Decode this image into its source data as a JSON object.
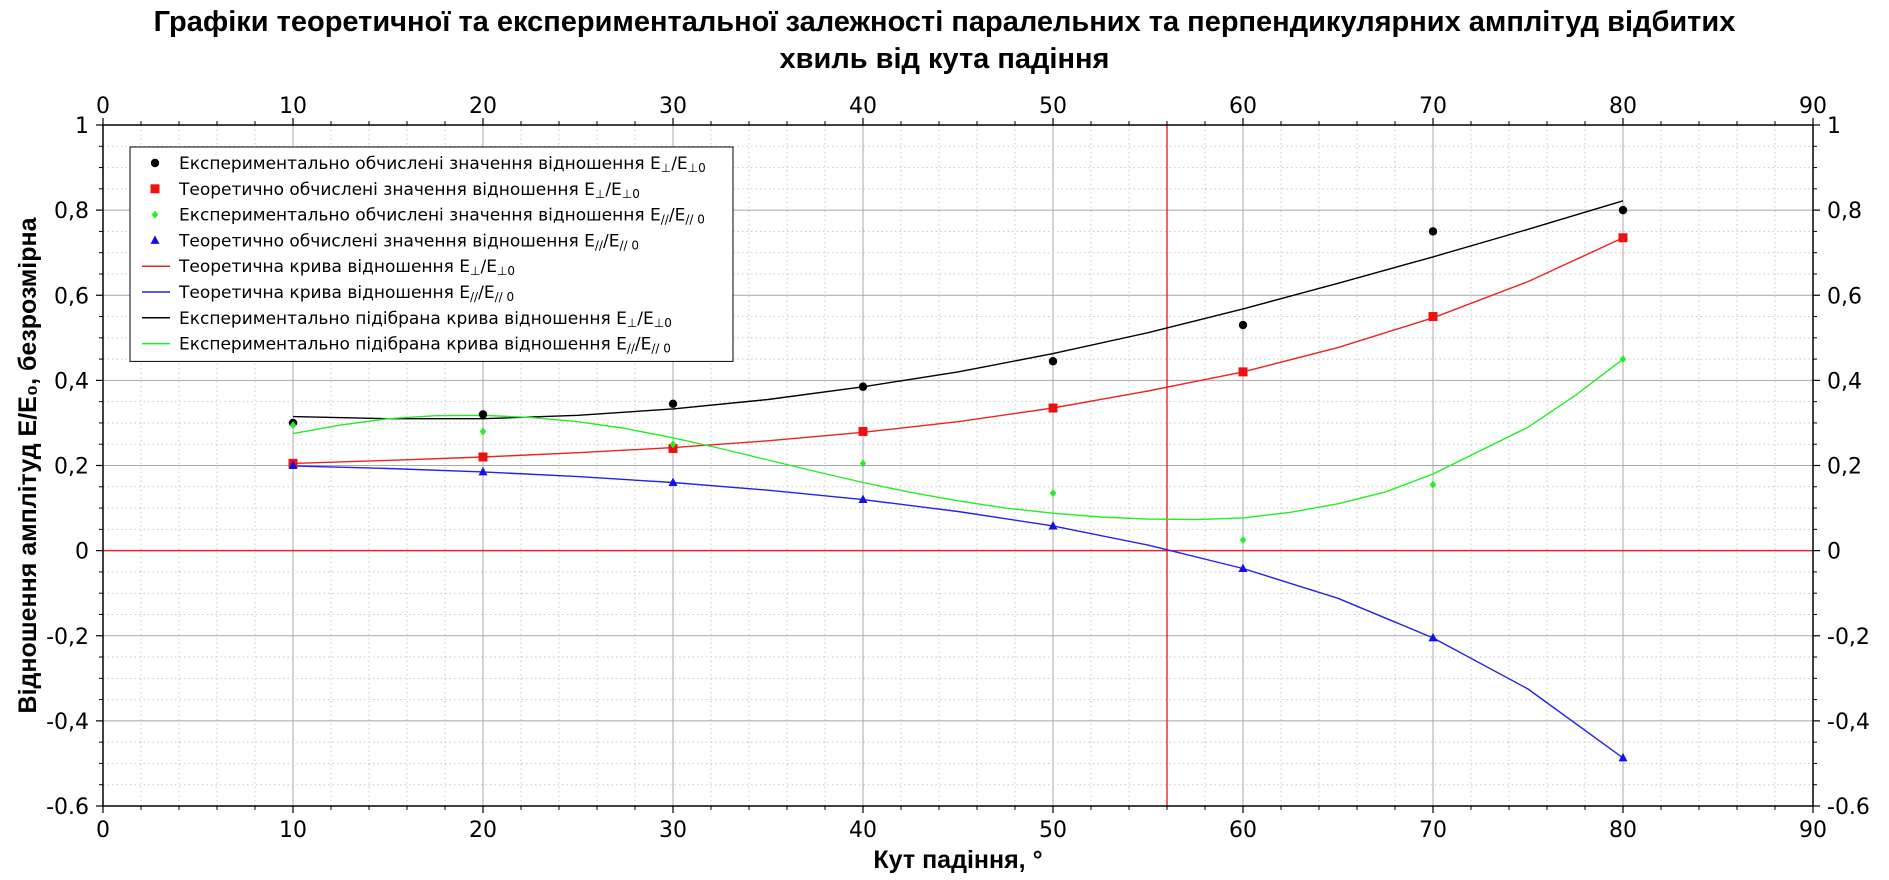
{
  "chart_data": {
    "type": "line",
    "title_line1": "Графіки теоретичної та експериментальної залежності паралельних та перпендикулярних амплітуд відбитих",
    "title_line2": "хвиль від кута падіння",
    "xlabel": "Кут падіння, °",
    "ylabel": "Відношення амплітуд E/E₀, безрозмірна",
    "xlim": [
      0,
      90
    ],
    "ylim": [
      -0.6,
      1
    ],
    "x_ticks": [
      "0",
      "10",
      "20",
      "30",
      "40",
      "50",
      "60",
      "70",
      "80",
      "90"
    ],
    "y_ticks": [
      "-0.6",
      "-0,4",
      "-0,2",
      "0",
      "0,2",
      "0,4",
      "0,6",
      "0,8",
      "1"
    ],
    "grid": true,
    "legend_position": "top-left",
    "reference_lines": {
      "vertical_x": 56,
      "horizontal_y": 0,
      "color": "#e8262b"
    },
    "series": [
      {
        "name": "Експериментально обчислені значення відношення E⊥/E⊥0",
        "kind": "points",
        "marker": "circle",
        "color": "#000000",
        "x": [
          10,
          20,
          30,
          40,
          50,
          60,
          70,
          80
        ],
        "y": [
          0.3,
          0.32,
          0.345,
          0.385,
          0.445,
          0.53,
          0.75,
          0.8
        ]
      },
      {
        "name": "Теоретично обчислені значення відношення E⊥/E⊥0",
        "kind": "points",
        "marker": "square",
        "color": "#ee1111",
        "x": [
          10,
          20,
          30,
          40,
          50,
          60,
          70,
          80
        ],
        "y": [
          0.205,
          0.22,
          0.24,
          0.28,
          0.335,
          0.42,
          0.55,
          0.735
        ]
      },
      {
        "name": "Експериментально обчислені значення відношення E//E//0",
        "kind": "points",
        "marker": "diamond",
        "color": "#22ee22",
        "x": [
          10,
          20,
          30,
          40,
          50,
          60,
          70,
          80
        ],
        "y": [
          0.295,
          0.28,
          0.25,
          0.205,
          0.135,
          0.025,
          0.155,
          0.45
        ]
      },
      {
        "name": "Теоретично обчислені значення відношення E//E//0",
        "kind": "points",
        "marker": "triangle",
        "color": "#1111ee",
        "x": [
          10,
          20,
          30,
          40,
          50,
          60,
          70,
          80
        ],
        "y": [
          0.2,
          0.185,
          0.16,
          0.12,
          0.058,
          -0.042,
          -0.205,
          -0.487
        ]
      },
      {
        "name": "Теоретична крива відношення E⊥/E⊥0",
        "kind": "line",
        "color": "#ee2222",
        "x": [
          10,
          15,
          20,
          25,
          30,
          35,
          40,
          45,
          50,
          55,
          60,
          65,
          70,
          75,
          80
        ],
        "y": [
          0.205,
          0.212,
          0.22,
          0.23,
          0.242,
          0.258,
          0.278,
          0.303,
          0.335,
          0.375,
          0.42,
          0.477,
          0.547,
          0.632,
          0.735
        ]
      },
      {
        "name": "Теоретична крива відношення E//E//0",
        "kind": "line",
        "color": "#2222ee",
        "x": [
          10,
          15,
          20,
          25,
          30,
          35,
          40,
          45,
          50,
          55,
          60,
          65,
          70,
          75,
          80
        ],
        "y": [
          0.199,
          0.193,
          0.185,
          0.174,
          0.16,
          0.142,
          0.12,
          0.092,
          0.058,
          0.013,
          -0.042,
          -0.112,
          -0.205,
          -0.325,
          -0.487
        ]
      },
      {
        "name": "Експериментально підібрана крива відношення E⊥/E⊥0",
        "kind": "line",
        "color": "#000000",
        "x": [
          10,
          15,
          20,
          25,
          30,
          35,
          40,
          45,
          50,
          55,
          60,
          65,
          70,
          75,
          80
        ],
        "y": [
          0.315,
          0.31,
          0.31,
          0.318,
          0.333,
          0.355,
          0.385,
          0.42,
          0.463,
          0.512,
          0.568,
          0.628,
          0.69,
          0.755,
          0.822
        ]
      },
      {
        "name": "Експериментально підібрана крива відношення E//E//0",
        "kind": "line",
        "color": "#22ee22",
        "x": [
          10,
          12.5,
          15,
          17.5,
          20,
          22.5,
          25,
          27.5,
          30,
          32.5,
          35,
          37.5,
          40,
          42.5,
          45,
          47.5,
          50,
          52.5,
          55,
          57.5,
          60,
          62.5,
          65,
          67.5,
          70,
          72.5,
          75,
          77.5,
          80
        ],
        "y": [
          0.275,
          0.295,
          0.31,
          0.317,
          0.318,
          0.313,
          0.303,
          0.287,
          0.265,
          0.24,
          0.213,
          0.186,
          0.16,
          0.137,
          0.117,
          0.1,
          0.088,
          0.079,
          0.074,
          0.073,
          0.077,
          0.09,
          0.11,
          0.138,
          0.18,
          0.235,
          0.29,
          0.365,
          0.45
        ]
      }
    ],
    "legend_labels": [
      {
        "text": "Експериментально обчислені значення відношення E",
        "sub_a": "⊥",
        "mid": "/E",
        "sub_b": "⊥0"
      },
      {
        "text": "Теоретично обчислені значення відношення E",
        "sub_a": "⊥",
        "mid": "/E",
        "sub_b": "⊥0"
      },
      {
        "text": "Експериментально обчислені значення відношення E",
        "sub_a": "//",
        "mid": "/E",
        "sub_b": "// 0"
      },
      {
        "text": "Теоретично обчислені значення відношення E",
        "sub_a": "//",
        "mid": "/E",
        "sub_b": "// 0"
      },
      {
        "text": "Теоретична крива відношення E",
        "sub_a": "⊥",
        "mid": "/E",
        "sub_b": "⊥0"
      },
      {
        "text": "Теоретична крива відношення E",
        "sub_a": "//",
        "mid": "/E",
        "sub_b": "// 0"
      },
      {
        "text": "Експериментально підібрана крива відношення E",
        "sub_a": "⊥",
        "mid": "/E",
        "sub_b": "⊥0"
      },
      {
        "text": "Експериментально підібрана крива відношення E",
        "sub_a": "//",
        "mid": "/E",
        "sub_b": "// 0"
      }
    ]
  }
}
